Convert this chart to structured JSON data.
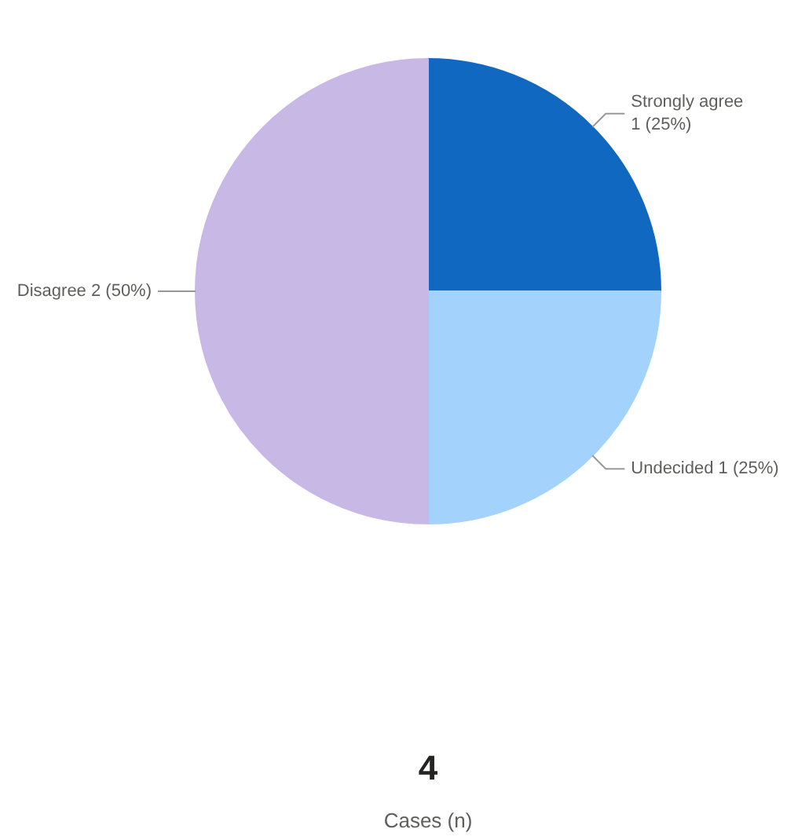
{
  "chart_data": {
    "type": "pie",
    "categories": [
      "Strongly agree",
      "Undecided",
      "Disagree"
    ],
    "values": [
      1,
      1,
      2
    ],
    "value_labels": [
      "1 (25%)",
      "1 (25%)",
      "2 (50%)"
    ],
    "colors": [
      "#1068c0",
      "#a3d2fd",
      "#c8b8e6"
    ],
    "annotations": [
      "4",
      "Cases (n)"
    ]
  }
}
